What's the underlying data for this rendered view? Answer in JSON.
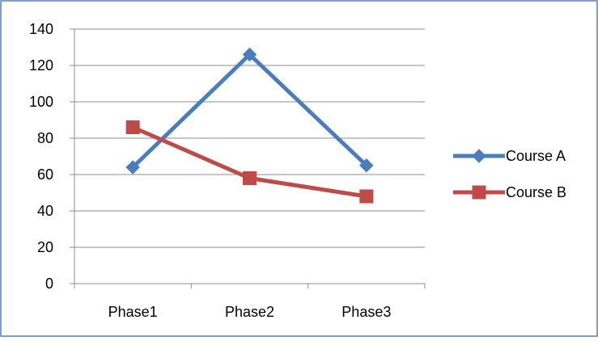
{
  "chart_data": {
    "type": "line",
    "categories": [
      "Phase1",
      "Phase2",
      "Phase3"
    ],
    "series": [
      {
        "name": "Course A",
        "values": [
          64,
          126,
          65
        ],
        "color": "#4a7ebb",
        "marker": "diamond"
      },
      {
        "name": "Course B",
        "values": [
          86,
          58,
          48
        ],
        "color": "#be4b48",
        "marker": "square"
      }
    ],
    "title": "",
    "xlabel": "",
    "ylabel": "",
    "ylim": [
      0,
      140
    ],
    "yticks": [
      "0",
      "20",
      "40",
      "60",
      "80",
      "100",
      "120",
      "140"
    ],
    "grid": true,
    "legend_position": "right",
    "border_color": "#4f81bd",
    "grid_color": "#8c8c8c"
  }
}
